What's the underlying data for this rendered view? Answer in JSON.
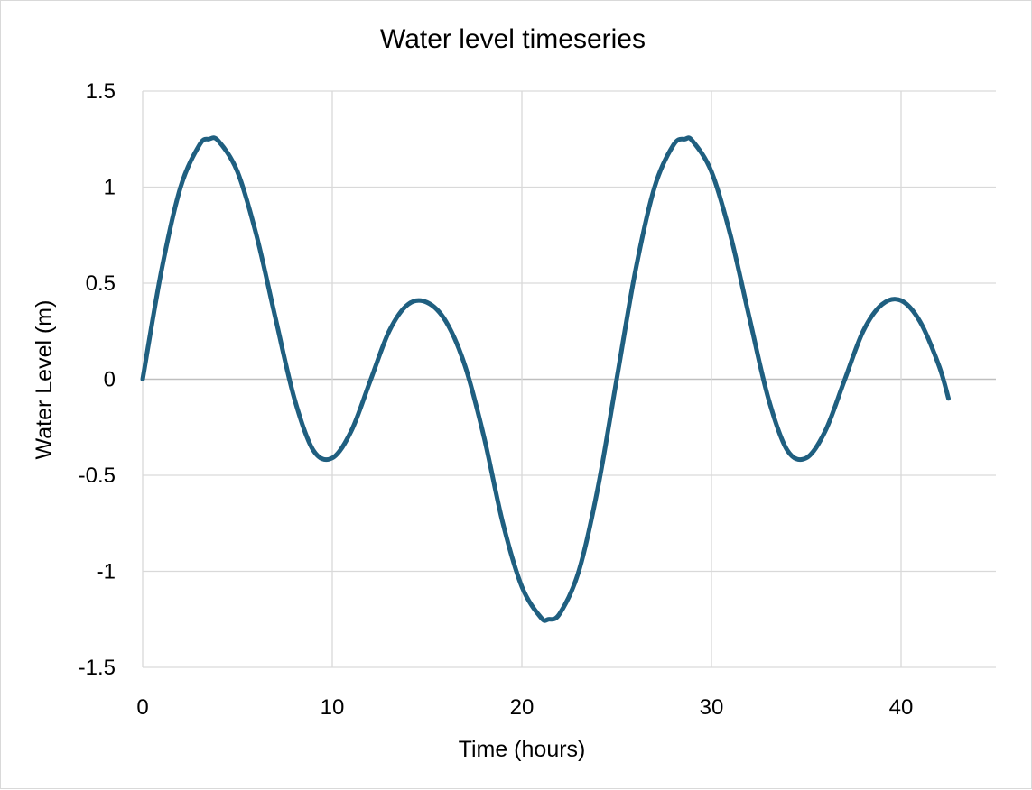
{
  "chart_data": {
    "type": "line",
    "title": "Water level  timeseries",
    "xlabel": "Time (hours)",
    "ylabel": "Water Level (m)",
    "xlim": [
      0,
      45
    ],
    "ylim": [
      -1.5,
      1.5
    ],
    "x_ticks": [
      "0",
      "10",
      "20",
      "30",
      "40"
    ],
    "y_ticks": [
      "1.5",
      "1",
      "0.5",
      "0",
      "-0.5",
      "-1",
      "-1.5"
    ],
    "grid": true,
    "legend": "none",
    "series": [
      {
        "color": "#1f5f80",
        "x": [
          0,
          1,
          2,
          3,
          3.5,
          4,
          5,
          6,
          7,
          8,
          9,
          10,
          11,
          12,
          13,
          14,
          15,
          16,
          17,
          18,
          19,
          20,
          21,
          21.4,
          22,
          23,
          24,
          25,
          26,
          27,
          28,
          28.6,
          29,
          30,
          31,
          32,
          33,
          34,
          35,
          36,
          37,
          38,
          39,
          40,
          41,
          42,
          42.5
        ],
        "y": [
          0,
          0.57,
          1.0,
          1.22,
          1.25,
          1.24,
          1.08,
          0.75,
          0.32,
          -0.1,
          -0.37,
          -0.41,
          -0.27,
          -0.01,
          0.25,
          0.39,
          0.4,
          0.3,
          0.07,
          -0.3,
          -0.75,
          -1.08,
          -1.24,
          -1.25,
          -1.22,
          -1.0,
          -0.57,
          0.0,
          0.57,
          1.0,
          1.22,
          1.25,
          1.24,
          1.08,
          0.75,
          0.32,
          -0.1,
          -0.37,
          -0.41,
          -0.27,
          -0.01,
          0.25,
          0.39,
          0.41,
          0.3,
          0.07,
          -0.1
        ]
      }
    ]
  }
}
